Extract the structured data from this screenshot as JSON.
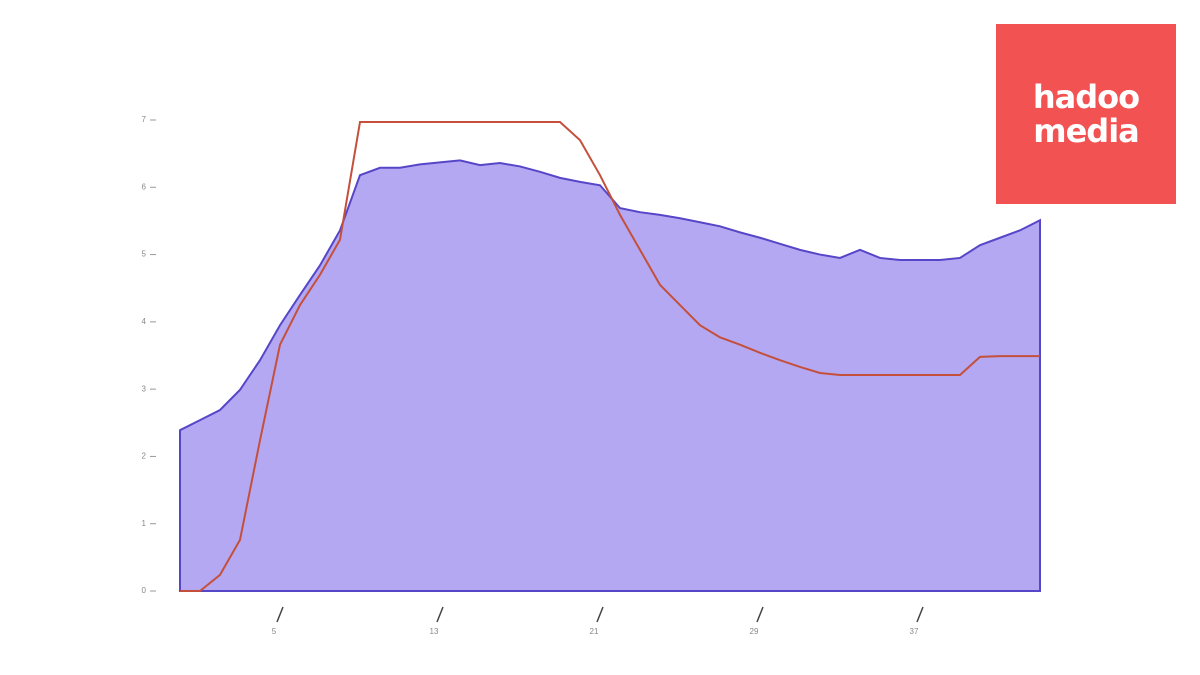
{
  "chart_data": {
    "type": "area_line",
    "x": [
      0,
      1,
      2,
      3,
      4,
      5,
      6,
      7,
      8,
      9,
      10,
      11,
      12,
      13,
      14,
      15,
      16,
      17,
      18,
      19,
      20,
      21,
      22,
      23,
      24,
      25,
      26,
      27,
      28,
      29,
      30,
      31,
      32,
      33,
      34,
      35,
      36,
      37,
      38,
      39,
      40,
      41,
      42,
      43
    ],
    "series": [
      {
        "kind": "area",
        "color": "#b5a8f2",
        "values": [
          2.39,
          2.54,
          2.69,
          2.99,
          3.43,
          3.95,
          4.4,
          4.84,
          5.36,
          6.18,
          6.29,
          6.29,
          6.34,
          6.37,
          6.4,
          6.33,
          6.36,
          6.31,
          6.23,
          6.14,
          6.08,
          6.03,
          5.69,
          5.63,
          5.59,
          5.54,
          5.48,
          5.42,
          5.33,
          5.25,
          5.16,
          5.07,
          5.0,
          4.95,
          5.07,
          4.95,
          4.92,
          4.92,
          4.92,
          4.95,
          5.14,
          5.25,
          5.36,
          5.51
        ]
      },
      {
        "kind": "line",
        "color": "#c4503c",
        "values": [
          0,
          0,
          0.24,
          0.76,
          2.24,
          3.66,
          4.25,
          4.7,
          5.22,
          6.97,
          6.97,
          6.97,
          6.97,
          6.97,
          6.97,
          6.97,
          6.97,
          6.97,
          6.97,
          6.97,
          6.7,
          6.18,
          5.59,
          5.07,
          4.55,
          4.25,
          3.95,
          3.77,
          3.66,
          3.54,
          3.43,
          3.33,
          3.24,
          3.21,
          3.21,
          3.21,
          3.21,
          3.21,
          3.21,
          3.21,
          3.48,
          3.49,
          3.49,
          3.49
        ]
      }
    ],
    "xlim": [
      0,
      43
    ],
    "xticks": [
      5,
      13,
      21,
      29,
      37
    ],
    "ylim": [
      0,
      7
    ],
    "yticks": [
      0,
      1,
      2,
      3,
      4,
      5,
      6,
      7
    ]
  },
  "logo": {
    "line1": "hadoo",
    "line2": "media"
  }
}
